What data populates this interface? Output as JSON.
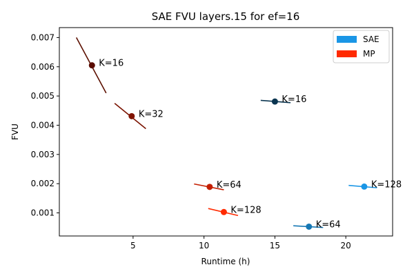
{
  "chart_data": {
    "type": "scatter",
    "title": "SAE FVU layers.15 for ef=16",
    "xlabel": "Runtime (h)",
    "ylabel": "FVU",
    "xlim": [
      -0.2,
      23.3
    ],
    "ylim": [
      0.00021,
      0.00734
    ],
    "xticks": [
      5,
      10,
      15,
      20
    ],
    "yticks": [
      0.001,
      0.002,
      0.003,
      0.004,
      0.005,
      0.006,
      0.007
    ],
    "ytick_labels": [
      "0.001",
      "0.002",
      "0.003",
      "0.004",
      "0.005",
      "0.006",
      "0.007"
    ],
    "grid": false,
    "legend_position": "top-right",
    "legend": [
      {
        "label": "SAE",
        "color": "#1a96e6"
      },
      {
        "label": "MP",
        "color": "#ff2a00"
      }
    ],
    "points": [
      {
        "label": "K=16",
        "x": 2.1,
        "y": 0.00605,
        "color": "#5a0c00",
        "line_color": "#5c1000",
        "seg": [
          [
            1.0,
            0.007
          ],
          [
            3.1,
            0.0051
          ]
        ]
      },
      {
        "label": "K=32",
        "x": 4.9,
        "y": 0.00431,
        "color": "#801400",
        "line_color": "#7a1200",
        "seg": [
          [
            3.7,
            0.00475
          ],
          [
            5.9,
            0.00388
          ]
        ]
      },
      {
        "label": "K=64",
        "x": 10.4,
        "y": 0.00189,
        "color": "#c41e00",
        "line_color": "#c41e00",
        "seg": [
          [
            9.3,
            0.00199
          ],
          [
            11.4,
            0.00179
          ]
        ]
      },
      {
        "label": "K=128",
        "x": 11.4,
        "y": 0.00103,
        "color": "#ff2a00",
        "line_color": "#ff2a00",
        "seg": [
          [
            10.3,
            0.00115
          ],
          [
            12.4,
            0.00091
          ]
        ]
      },
      {
        "label": "K=16",
        "x": 15.0,
        "y": 0.00481,
        "color": "#0a3550",
        "line_color": "#0a3550",
        "seg": [
          [
            14.0,
            0.00485
          ],
          [
            16.1,
            0.00477
          ]
        ]
      },
      {
        "label": "K=64",
        "x": 17.4,
        "y": 0.00053,
        "color": "#1577b4",
        "line_color": "#1577b4",
        "seg": [
          [
            16.3,
            0.00056
          ],
          [
            18.4,
            0.0005
          ]
        ]
      },
      {
        "label": "K=128",
        "x": 21.3,
        "y": 0.0019,
        "color": "#1a96e6",
        "line_color": "#1a96e6",
        "seg": [
          [
            20.2,
            0.00194
          ],
          [
            22.2,
            0.00186
          ]
        ]
      }
    ]
  }
}
